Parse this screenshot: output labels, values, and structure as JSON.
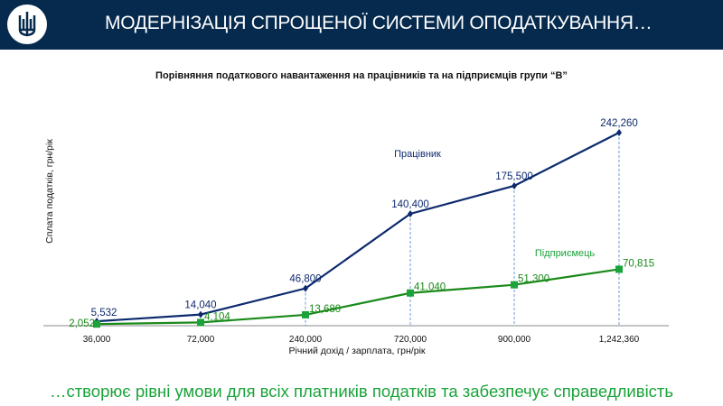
{
  "header": {
    "title": "МОДЕРНІЗАЦІЯ СПРОЩЕНОЇ СИСТЕМИ ОПОДАТКУВАННЯ…",
    "logo": "trident-icon"
  },
  "chart_data": {
    "type": "line",
    "title": "Порівняння податкового навантаження на працівників та на підприємців групи “В”",
    "xlabel": "Річний дохід / зарплата,  грн/рік",
    "ylabel": "Сплата податків, грн/рік",
    "categories": [
      "36,000",
      "72,000",
      "240,000",
      "720,000",
      "900,000",
      "1,242,360"
    ],
    "ylim": [
      0,
      242260
    ],
    "series": [
      {
        "name": "Працівник",
        "color": "#0d2a6e",
        "values": [
          5532,
          14040,
          46800,
          140400,
          175500,
          242260
        ],
        "labels": [
          "5,532",
          "14,040",
          "46,800",
          "140,400",
          "175,500",
          "242,260"
        ]
      },
      {
        "name": "Підприємець",
        "color": "#1a8a1a",
        "values": [
          2052,
          4104,
          13680,
          41040,
          51300,
          70815
        ],
        "labels": [
          "2,052",
          "4,104",
          "13,680",
          "41,040",
          "51,300",
          "70,815"
        ]
      }
    ]
  },
  "footer": {
    "text": "…створює рівні умови для всіх платників податків та забезпечує справедливість"
  }
}
